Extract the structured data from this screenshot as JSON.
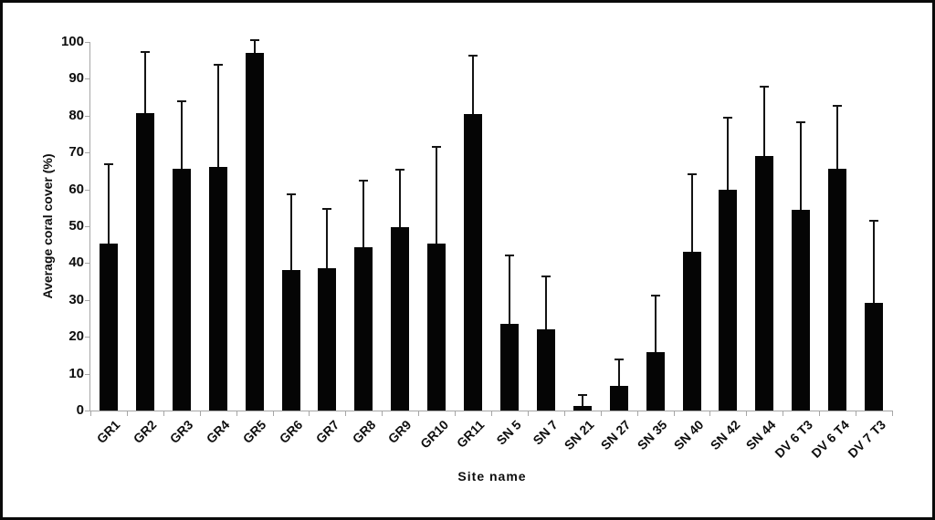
{
  "figure": {
    "background": "#ffffff",
    "border_color": "#0a0a0a"
  },
  "chart_data": {
    "type": "bar",
    "title": "",
    "xlabel": "Site name",
    "ylabel": "Average coral cover (%)",
    "ylim": [
      0,
      100
    ],
    "yticks": [
      0,
      10,
      20,
      30,
      40,
      50,
      60,
      70,
      80,
      90,
      100
    ],
    "grid": false,
    "legend": null,
    "bar_color": "#050505",
    "axis_color": "#a6a6a6",
    "error_bar_style": "upper-only-with-cap",
    "categories": [
      "GR1",
      "GR2",
      "GR3",
      "GR4",
      "GR5",
      "GR6",
      "GR7",
      "GR8",
      "GR9",
      "GR10",
      "GR11",
      "SN 5",
      "SN 7",
      "SN 21",
      "SN 27",
      "SN 35",
      "SN 40",
      "SN 42",
      "SN 44",
      "DV 6 T3",
      "DV 6 T4",
      "DV 7 T3"
    ],
    "series": [
      {
        "name": "Average coral cover",
        "values": [
          45.3,
          80.8,
          65.7,
          66.0,
          97.0,
          38.0,
          38.7,
          44.4,
          49.7,
          45.3,
          80.4,
          23.5,
          22.0,
          1.2,
          6.6,
          15.8,
          43.0,
          60.0,
          69.0,
          54.5,
          65.5,
          29.2
        ],
        "error_upper": [
          21.5,
          16.5,
          18.3,
          27.9,
          3.4,
          20.7,
          16.0,
          17.9,
          15.6,
          26.2,
          15.8,
          18.7,
          14.4,
          3.1,
          7.3,
          15.4,
          21.0,
          19.4,
          18.8,
          23.7,
          17.2,
          22.3
        ]
      }
    ]
  }
}
